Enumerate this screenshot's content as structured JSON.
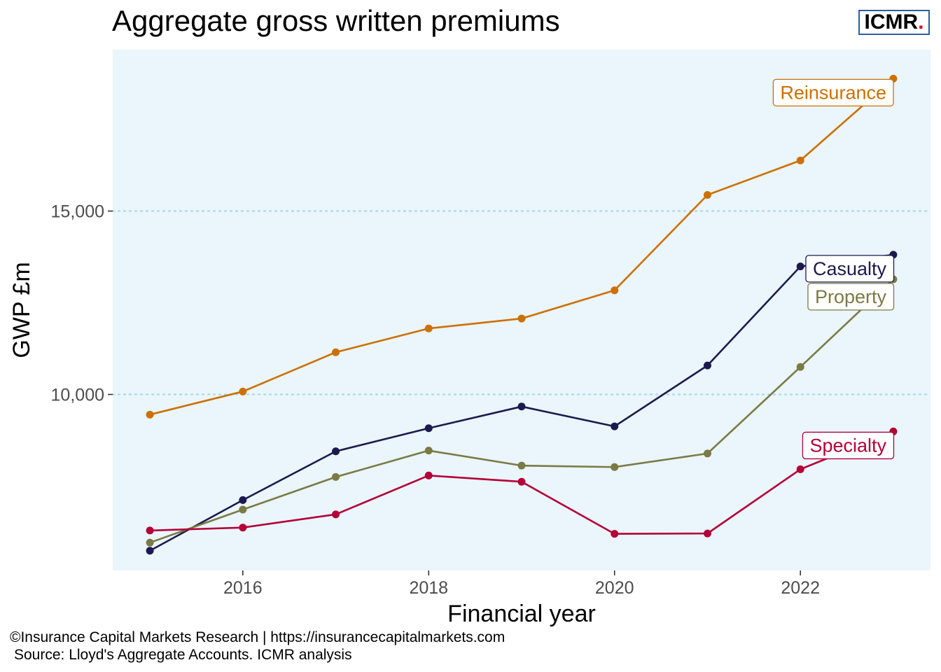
{
  "logo": {
    "text": "ICMR",
    "dot": "."
  },
  "footer": {
    "credit": "©Insurance Capital Markets Research | https://insurancecapitalmarkets.com",
    "source": "Source: Lloyd's Aggregate Accounts. ICMR analysis"
  },
  "colors": {
    "panel_background": "#eaf5fc",
    "gridline": "#a9d8e6",
    "tick_text": "#4d4d4d",
    "logo_border": "#2a5f9e",
    "logo_dot": "#e2001a"
  },
  "chart_data": {
    "type": "line",
    "title": "Aggregate gross written premiums",
    "xlabel": "Financial year",
    "ylabel": "GWP £m",
    "x": [
      2015,
      2016,
      2017,
      2018,
      2019,
      2020,
      2021,
      2022,
      2023
    ],
    "xlim": [
      2014.6,
      2023.4
    ],
    "ylim": [
      5200,
      19400
    ],
    "xticks": [
      2016,
      2018,
      2020,
      2022
    ],
    "xtick_labels": [
      "2016",
      "2018",
      "2020",
      "2022"
    ],
    "yticks": [
      10000,
      15000
    ],
    "ytick_labels": [
      "10,000",
      "15,000"
    ],
    "grid": "horizontal dotted at y ticks",
    "legend": "direct labels at line ends",
    "series": [
      {
        "name": "Reinsurance",
        "color": "#cc7000",
        "values": [
          9450,
          10080,
          11150,
          11800,
          12070,
          12840,
          15440,
          16380,
          18610
        ]
      },
      {
        "name": "Casualty",
        "color": "#1c1a4d",
        "values": [
          5740,
          7120,
          8450,
          9080,
          9670,
          9130,
          10790,
          13490,
          13810
        ]
      },
      {
        "name": "Property",
        "color": "#7a7a45",
        "values": [
          5960,
          6860,
          7750,
          8470,
          8060,
          8020,
          8390,
          10750,
          13140
        ]
      },
      {
        "name": "Specialty",
        "color": "#b30037",
        "values": [
          6290,
          6370,
          6730,
          7790,
          7620,
          6200,
          6210,
          7960,
          8990
        ]
      }
    ]
  }
}
